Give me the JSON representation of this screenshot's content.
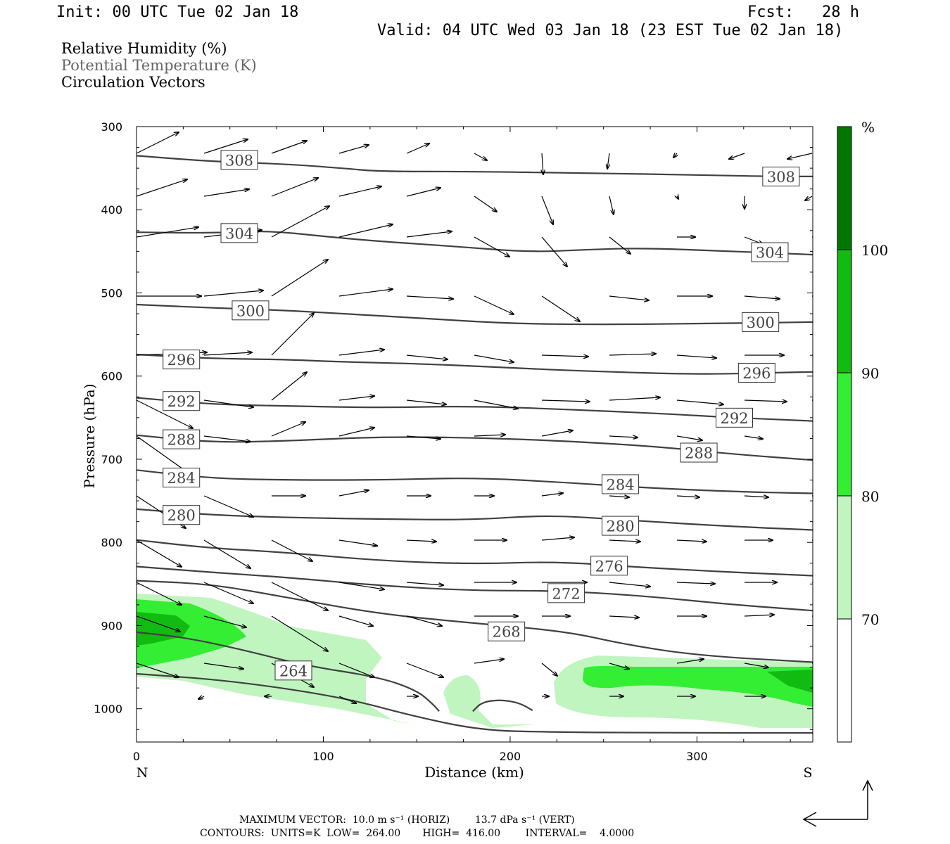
{
  "header": {
    "init": "Init: 00 UTC Tue 02 Jan 18",
    "fcst": "Fcst:   28 h",
    "valid": "Valid: 04 UTC Wed 03 Jan 18 (23 EST Tue 02 Jan 18)"
  },
  "legend": {
    "rh": "Relative Humidity (%)",
    "theta": "Potential Temperature (K)",
    "vectors": "Circulation Vectors"
  },
  "colors": {
    "theta_line": "#404040",
    "rh_70": "#c0f5c0",
    "rh_80": "#33ee33",
    "rh_90": "#11bb11",
    "rh_100": "#007700"
  },
  "chart_data": {
    "type": "cross-section",
    "xlabel": "Distance (km)",
    "ylabel": "Pressure (hPa)",
    "xlim": [
      0,
      362
    ],
    "ylim": [
      300,
      1040
    ],
    "x_ticks": [
      "0",
      "100",
      "200",
      "300"
    ],
    "y_ticks": [
      "300",
      "400",
      "500",
      "600",
      "700",
      "800",
      "900",
      "1000"
    ],
    "x_end_labels": {
      "left": "N",
      "right": "S"
    },
    "colorbar": {
      "unit": "%",
      "levels": [
        "70",
        "80",
        "90",
        "100"
      ]
    },
    "theta_contours": [
      {
        "label": "308",
        "points": [
          [
            0,
            335
          ],
          [
            40,
            342
          ],
          [
            80,
            345
          ],
          [
            110,
            350
          ],
          [
            130,
            354
          ],
          [
            180,
            354
          ],
          [
            240,
            356
          ],
          [
            300,
            358
          ],
          [
            340,
            360
          ],
          [
            362,
            360
          ]
        ],
        "labels": [
          [
            55,
            340
          ],
          [
            345,
            360
          ]
        ]
      },
      {
        "label": "304",
        "points": [
          [
            0,
            427
          ],
          [
            40,
            428
          ],
          [
            70,
            425
          ],
          [
            100,
            432
          ],
          [
            130,
            438
          ],
          [
            170,
            444
          ],
          [
            210,
            451
          ],
          [
            240,
            448
          ],
          [
            270,
            446
          ],
          [
            320,
            450
          ],
          [
            362,
            454
          ]
        ],
        "labels": [
          [
            55,
            428
          ],
          [
            339,
            451
          ]
        ]
      },
      {
        "label": "300",
        "points": [
          [
            0,
            514
          ],
          [
            40,
            518
          ],
          [
            80,
            521
          ],
          [
            110,
            525
          ],
          [
            150,
            530
          ],
          [
            200,
            537
          ],
          [
            250,
            538
          ],
          [
            300,
            537
          ],
          [
            362,
            535
          ]
        ],
        "labels": [
          [
            61,
            521
          ],
          [
            334,
            535
          ]
        ]
      },
      {
        "label": "296",
        "points": [
          [
            0,
            574
          ],
          [
            40,
            579
          ],
          [
            80,
            580
          ],
          [
            110,
            583
          ],
          [
            150,
            585
          ],
          [
            200,
            590
          ],
          [
            240,
            594
          ],
          [
            300,
            598
          ],
          [
            340,
            596
          ],
          [
            362,
            595
          ]
        ],
        "labels": [
          [
            24,
            580
          ],
          [
            332,
            596
          ]
        ]
      },
      {
        "label": "292",
        "points": [
          [
            0,
            626
          ],
          [
            40,
            634
          ],
          [
            80,
            636
          ],
          [
            130,
            638
          ],
          [
            180,
            636
          ],
          [
            230,
            640
          ],
          [
            280,
            645
          ],
          [
            320,
            650
          ],
          [
            362,
            654
          ]
        ],
        "labels": [
          [
            24,
            630
          ],
          [
            320,
            650
          ]
        ]
      },
      {
        "label": "288",
        "points": [
          [
            0,
            671
          ],
          [
            40,
            680
          ],
          [
            80,
            678
          ],
          [
            130,
            673
          ],
          [
            180,
            674
          ],
          [
            230,
            678
          ],
          [
            280,
            685
          ],
          [
            320,
            694
          ],
          [
            362,
            701
          ]
        ],
        "labels": [
          [
            24,
            676
          ],
          [
            301,
            692
          ]
        ]
      },
      {
        "label": "284",
        "points": [
          [
            0,
            713
          ],
          [
            40,
            723
          ],
          [
            80,
            725
          ],
          [
            130,
            725
          ],
          [
            180,
            722
          ],
          [
            230,
            728
          ],
          [
            270,
            734
          ],
          [
            320,
            739
          ],
          [
            362,
            741
          ]
        ],
        "labels": [
          [
            24,
            722
          ],
          [
            259,
            730
          ]
        ]
      },
      {
        "label": "280",
        "points": [
          [
            0,
            760
          ],
          [
            40,
            767
          ],
          [
            80,
            770
          ],
          [
            130,
            772
          ],
          [
            180,
            773
          ],
          [
            220,
            767
          ],
          [
            260,
            773
          ],
          [
            320,
            781
          ],
          [
            362,
            785
          ]
        ],
        "labels": [
          [
            24,
            767
          ],
          [
            259,
            780
          ]
        ]
      },
      {
        "label": "276",
        "points": [
          [
            0,
            797
          ],
          [
            40,
            807
          ],
          [
            80,
            812
          ],
          [
            130,
            822
          ],
          [
            180,
            826
          ],
          [
            225,
            823
          ],
          [
            270,
            830
          ],
          [
            320,
            836
          ],
          [
            362,
            840
          ]
        ],
        "labels": [
          [
            253,
            828
          ]
        ]
      },
      {
        "label": "272",
        "points": [
          [
            0,
            829
          ],
          [
            40,
            836
          ],
          [
            80,
            842
          ],
          [
            130,
            852
          ],
          [
            180,
            858
          ],
          [
            225,
            858
          ],
          [
            270,
            864
          ],
          [
            320,
            875
          ],
          [
            362,
            882
          ]
        ],
        "labels": [
          [
            230,
            861
          ]
        ]
      },
      {
        "label": "268",
        "points": [
          [
            0,
            846
          ],
          [
            40,
            850
          ],
          [
            80,
            866
          ],
          [
            130,
            886
          ],
          [
            180,
            897
          ],
          [
            230,
            907
          ],
          [
            260,
            922
          ],
          [
            300,
            936
          ],
          [
            362,
            944
          ]
        ],
        "labels": [
          [
            198,
            907
          ]
        ]
      },
      {
        "label": "264",
        "points": [
          [
            0,
            908
          ],
          [
            25,
            914
          ],
          [
            55,
            928
          ],
          [
            90,
            948
          ],
          [
            130,
            962
          ],
          [
            150,
            978
          ],
          [
            158,
            993
          ],
          [
            162,
            1003
          ]
        ],
        "labels": [
          [
            84,
            954
          ]
        ]
      },
      {
        "label": "",
        "points": [
          [
            180,
            1003
          ],
          [
            185,
            992
          ],
          [
            195,
            989
          ],
          [
            205,
            993
          ],
          [
            212,
            1002
          ]
        ],
        "labels": []
      },
      {
        "label": "",
        "points": [
          [
            0,
            958
          ],
          [
            50,
            966
          ],
          [
            110,
            986
          ],
          [
            150,
            1010
          ],
          [
            185,
            1026
          ],
          [
            220,
            1028
          ],
          [
            270,
            1029
          ],
          [
            362,
            1029
          ]
        ],
        "labels": []
      }
    ]
  },
  "footer": {
    "line1": "MAXIMUM VECTOR:  10.0 m s⁻¹ (HORIZ)        13.7 dPa s⁻¹ (VERT)",
    "line2": "CONTOURS:  UNITS=K  LOW=  264.00       HIGH=  416.00        INTERVAL=    4.0000"
  }
}
